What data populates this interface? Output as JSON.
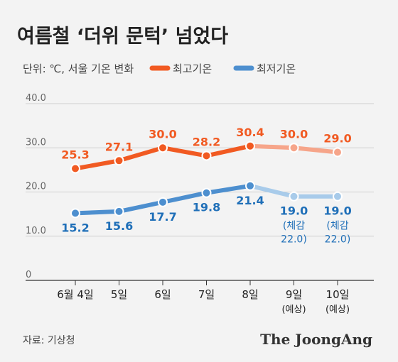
{
  "chart_data": {
    "type": "line",
    "title": "여름철 ‘더위 문턱’ 넘었다",
    "unit_label": "단위: ℃, 서울 기온 변화",
    "categories": [
      "6월 4일",
      "5일",
      "6일",
      "7일",
      "8일",
      "9일",
      "10일"
    ],
    "category_notes": [
      "",
      "",
      "",
      "",
      "",
      "(예상)",
      "(예상)"
    ],
    "ylim": [
      0,
      40
    ],
    "yticks": [
      {
        "value": 0,
        "label": "0"
      },
      {
        "value": 10,
        "label": "10.0"
      },
      {
        "value": 20,
        "label": "20.0"
      },
      {
        "value": 30,
        "label": "30.0"
      },
      {
        "value": 40,
        "label": "40.0"
      }
    ],
    "grid": true,
    "legend_position": "top",
    "forecast_start_index": 4,
    "series": [
      {
        "name": "최고기온",
        "color": "#f15a22",
        "forecast_color": "#f6a58a",
        "values": [
          25.3,
          27.1,
          30.0,
          28.2,
          30.4,
          30.0,
          29.0
        ],
        "labels": [
          "25.3",
          "27.1",
          "30.0",
          "28.2",
          "30.4",
          "30.0",
          "29.0"
        ],
        "notes": [
          "",
          "",
          "",
          "",
          "",
          "",
          ""
        ]
      },
      {
        "name": "최저기온",
        "color": "#4d8fcf",
        "forecast_color": "#a8cbea",
        "label_color": "#1f6fb8",
        "values": [
          15.2,
          15.6,
          17.7,
          19.8,
          21.4,
          19.0,
          19.0
        ],
        "labels": [
          "15.2",
          "15.6",
          "17.7",
          "19.8",
          "21.4",
          "19.0",
          "19.0"
        ],
        "notes": [
          "",
          "",
          "",
          "",
          "",
          "(체감 22.0)",
          "(체감 22.0)"
        ]
      }
    ]
  },
  "source": "자료: 기상청",
  "brand": "The JoongAng"
}
